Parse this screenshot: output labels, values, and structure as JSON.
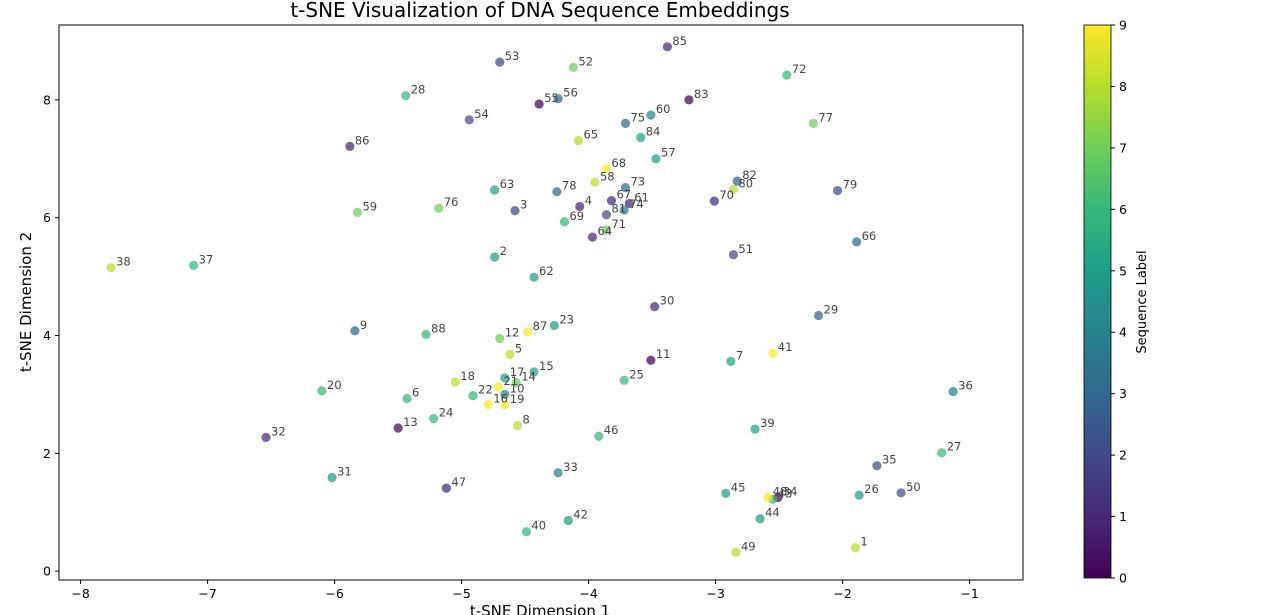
{
  "chart_data": {
    "type": "scatter",
    "title": "t-SNE Visualization of DNA Sequence Embeddings",
    "xlabel": "t-SNE Dimension 1",
    "ylabel": "t-SNE Dimension 2",
    "xlim": [
      -8.17,
      -0.58
    ],
    "ylim": [
      -0.15,
      9.27
    ],
    "xticks": [
      -8,
      -7,
      -6,
      -5,
      -4,
      -3,
      -2,
      -1
    ],
    "yticks": [
      0,
      2,
      4,
      6,
      8
    ],
    "grid": false,
    "colorbar": {
      "label": "Sequence Label",
      "min": 0,
      "max": 9,
      "ticks": [
        0,
        1,
        2,
        3,
        4,
        5,
        6,
        7,
        8,
        9
      ],
      "colormap": "viridis"
    },
    "points": [
      {
        "id": "1",
        "x": -1.9,
        "y": 0.4,
        "label": 8
      },
      {
        "id": "2",
        "x": -4.74,
        "y": 5.33,
        "label": 5
      },
      {
        "id": "3",
        "x": -4.58,
        "y": 6.12,
        "label": 2
      },
      {
        "id": "4",
        "x": -4.07,
        "y": 6.19,
        "label": 1
      },
      {
        "id": "5",
        "x": -4.62,
        "y": 3.68,
        "label": 8
      },
      {
        "id": "6",
        "x": -5.43,
        "y": 2.93,
        "label": 6
      },
      {
        "id": "7",
        "x": -2.88,
        "y": 3.56,
        "label": 5
      },
      {
        "id": "8",
        "x": -4.56,
        "y": 2.47,
        "label": 8
      },
      {
        "id": "9",
        "x": -5.84,
        "y": 4.08,
        "label": 3
      },
      {
        "id": "10",
        "x": -4.66,
        "y": 3.0,
        "label": 4
      },
      {
        "id": "11",
        "x": -3.51,
        "y": 3.58,
        "label": 0
      },
      {
        "id": "12",
        "x": -4.7,
        "y": 3.95,
        "label": 7
      },
      {
        "id": "13",
        "x": -5.5,
        "y": 2.43,
        "label": 0
      },
      {
        "id": "14",
        "x": -4.57,
        "y": 3.2,
        "label": 7
      },
      {
        "id": "15",
        "x": -4.43,
        "y": 3.38,
        "label": 5
      },
      {
        "id": "16",
        "x": -4.79,
        "y": 2.83,
        "label": 9
      },
      {
        "id": "17",
        "x": -4.66,
        "y": 3.28,
        "label": 5
      },
      {
        "id": "18",
        "x": -5.05,
        "y": 3.21,
        "label": 8
      },
      {
        "id": "19",
        "x": -4.66,
        "y": 2.82,
        "label": 9
      },
      {
        "id": "20",
        "x": -6.1,
        "y": 3.06,
        "label": 6
      },
      {
        "id": "21",
        "x": -4.71,
        "y": 3.13,
        "label": 9
      },
      {
        "id": "22",
        "x": -4.91,
        "y": 2.98,
        "label": 6
      },
      {
        "id": "23",
        "x": -4.27,
        "y": 4.17,
        "label": 5
      },
      {
        "id": "24",
        "x": -5.22,
        "y": 2.59,
        "label": 6
      },
      {
        "id": "25",
        "x": -3.72,
        "y": 3.24,
        "label": 6
      },
      {
        "id": "26",
        "x": -1.87,
        "y": 1.29,
        "label": 5
      },
      {
        "id": "27",
        "x": -1.22,
        "y": 2.01,
        "label": 6
      },
      {
        "id": "28",
        "x": -5.44,
        "y": 8.07,
        "label": 6
      },
      {
        "id": "29",
        "x": -2.19,
        "y": 4.34,
        "label": 3
      },
      {
        "id": "30",
        "x": -3.48,
        "y": 4.49,
        "label": 1
      },
      {
        "id": "31",
        "x": -6.02,
        "y": 1.59,
        "label": 5
      },
      {
        "id": "32",
        "x": -6.54,
        "y": 2.27,
        "label": 1
      },
      {
        "id": "33",
        "x": -4.24,
        "y": 1.67,
        "label": 4
      },
      {
        "id": "34",
        "x": -2.51,
        "y": 1.25,
        "label": 0
      },
      {
        "id": "35",
        "x": -1.73,
        "y": 1.79,
        "label": 2
      },
      {
        "id": "36",
        "x": -1.13,
        "y": 3.05,
        "label": 4
      },
      {
        "id": "37",
        "x": -7.11,
        "y": 5.19,
        "label": 6
      },
      {
        "id": "38",
        "x": -7.76,
        "y": 5.15,
        "label": 8
      },
      {
        "id": "39",
        "x": -2.69,
        "y": 2.41,
        "label": 5
      },
      {
        "id": "40",
        "x": -4.49,
        "y": 0.67,
        "label": 6
      },
      {
        "id": "41",
        "x": -2.55,
        "y": 3.7,
        "label": 9
      },
      {
        "id": "42",
        "x": -4.16,
        "y": 0.86,
        "label": 5
      },
      {
        "id": "43",
        "x": -2.55,
        "y": 1.22,
        "label": 6
      },
      {
        "id": "44",
        "x": -2.65,
        "y": 0.89,
        "label": 5
      },
      {
        "id": "45",
        "x": -2.92,
        "y": 1.32,
        "label": 5
      },
      {
        "id": "46",
        "x": -3.92,
        "y": 2.29,
        "label": 6
      },
      {
        "id": "47",
        "x": -5.12,
        "y": 1.41,
        "label": 1
      },
      {
        "id": "48",
        "x": -2.59,
        "y": 1.25,
        "label": 9
      },
      {
        "id": "49",
        "x": -2.84,
        "y": 0.32,
        "label": 8
      },
      {
        "id": "50",
        "x": -1.54,
        "y": 1.33,
        "label": 2
      },
      {
        "id": "51",
        "x": -2.86,
        "y": 5.37,
        "label": 2
      },
      {
        "id": "52",
        "x": -4.12,
        "y": 8.55,
        "label": 7
      },
      {
        "id": "53",
        "x": -4.7,
        "y": 8.64,
        "label": 2
      },
      {
        "id": "54",
        "x": -4.94,
        "y": 7.66,
        "label": 2
      },
      {
        "id": "55",
        "x": -4.39,
        "y": 7.93,
        "label": 0
      },
      {
        "id": "56",
        "x": -4.24,
        "y": 8.02,
        "label": 3
      },
      {
        "id": "57",
        "x": -3.47,
        "y": 7.0,
        "label": 5
      },
      {
        "id": "58",
        "x": -3.95,
        "y": 6.6,
        "label": 8
      },
      {
        "id": "59",
        "x": -5.82,
        "y": 6.09,
        "label": 7
      },
      {
        "id": "60",
        "x": -3.51,
        "y": 7.74,
        "label": 4
      },
      {
        "id": "61",
        "x": -3.68,
        "y": 6.24,
        "label": 1
      },
      {
        "id": "62",
        "x": -4.43,
        "y": 4.99,
        "label": 5
      },
      {
        "id": "63",
        "x": -4.74,
        "y": 6.47,
        "label": 5
      },
      {
        "id": "64",
        "x": -3.97,
        "y": 5.67,
        "label": 1
      },
      {
        "id": "65",
        "x": -4.08,
        "y": 7.31,
        "label": 8
      },
      {
        "id": "66",
        "x": -1.89,
        "y": 5.59,
        "label": 3
      },
      {
        "id": "67",
        "x": -3.82,
        "y": 6.29,
        "label": 1
      },
      {
        "id": "68",
        "x": -3.86,
        "y": 6.83,
        "label": 9
      },
      {
        "id": "69",
        "x": -4.19,
        "y": 5.93,
        "label": 6
      },
      {
        "id": "70",
        "x": -3.01,
        "y": 6.28,
        "label": 1
      },
      {
        "id": "71",
        "x": -3.86,
        "y": 5.79,
        "label": 7
      },
      {
        "id": "72",
        "x": -2.44,
        "y": 8.42,
        "label": 6
      },
      {
        "id": "73",
        "x": -3.71,
        "y": 6.51,
        "label": 3
      },
      {
        "id": "74",
        "x": -3.72,
        "y": 6.13,
        "label": 4
      },
      {
        "id": "75",
        "x": -3.71,
        "y": 7.6,
        "label": 3
      },
      {
        "id": "76",
        "x": -5.18,
        "y": 6.16,
        "label": 7
      },
      {
        "id": "77",
        "x": -2.23,
        "y": 7.6,
        "label": 7
      },
      {
        "id": "78",
        "x": -4.25,
        "y": 6.44,
        "label": 3
      },
      {
        "id": "79",
        "x": -2.04,
        "y": 6.46,
        "label": 2
      },
      {
        "id": "80",
        "x": -2.86,
        "y": 6.48,
        "label": 8
      },
      {
        "id": "81",
        "x": -3.86,
        "y": 6.05,
        "label": 2
      },
      {
        "id": "82",
        "x": -2.83,
        "y": 6.62,
        "label": 3
      },
      {
        "id": "83",
        "x": -3.21,
        "y": 8.0,
        "label": 0
      },
      {
        "id": "84",
        "x": -3.59,
        "y": 7.36,
        "label": 5
      },
      {
        "id": "85",
        "x": -3.38,
        "y": 8.9,
        "label": 1
      },
      {
        "id": "86",
        "x": -5.88,
        "y": 7.21,
        "label": 1
      },
      {
        "id": "87",
        "x": -4.48,
        "y": 4.06,
        "label": 9
      },
      {
        "id": "88",
        "x": -5.28,
        "y": 4.02,
        "label": 6
      }
    ]
  }
}
